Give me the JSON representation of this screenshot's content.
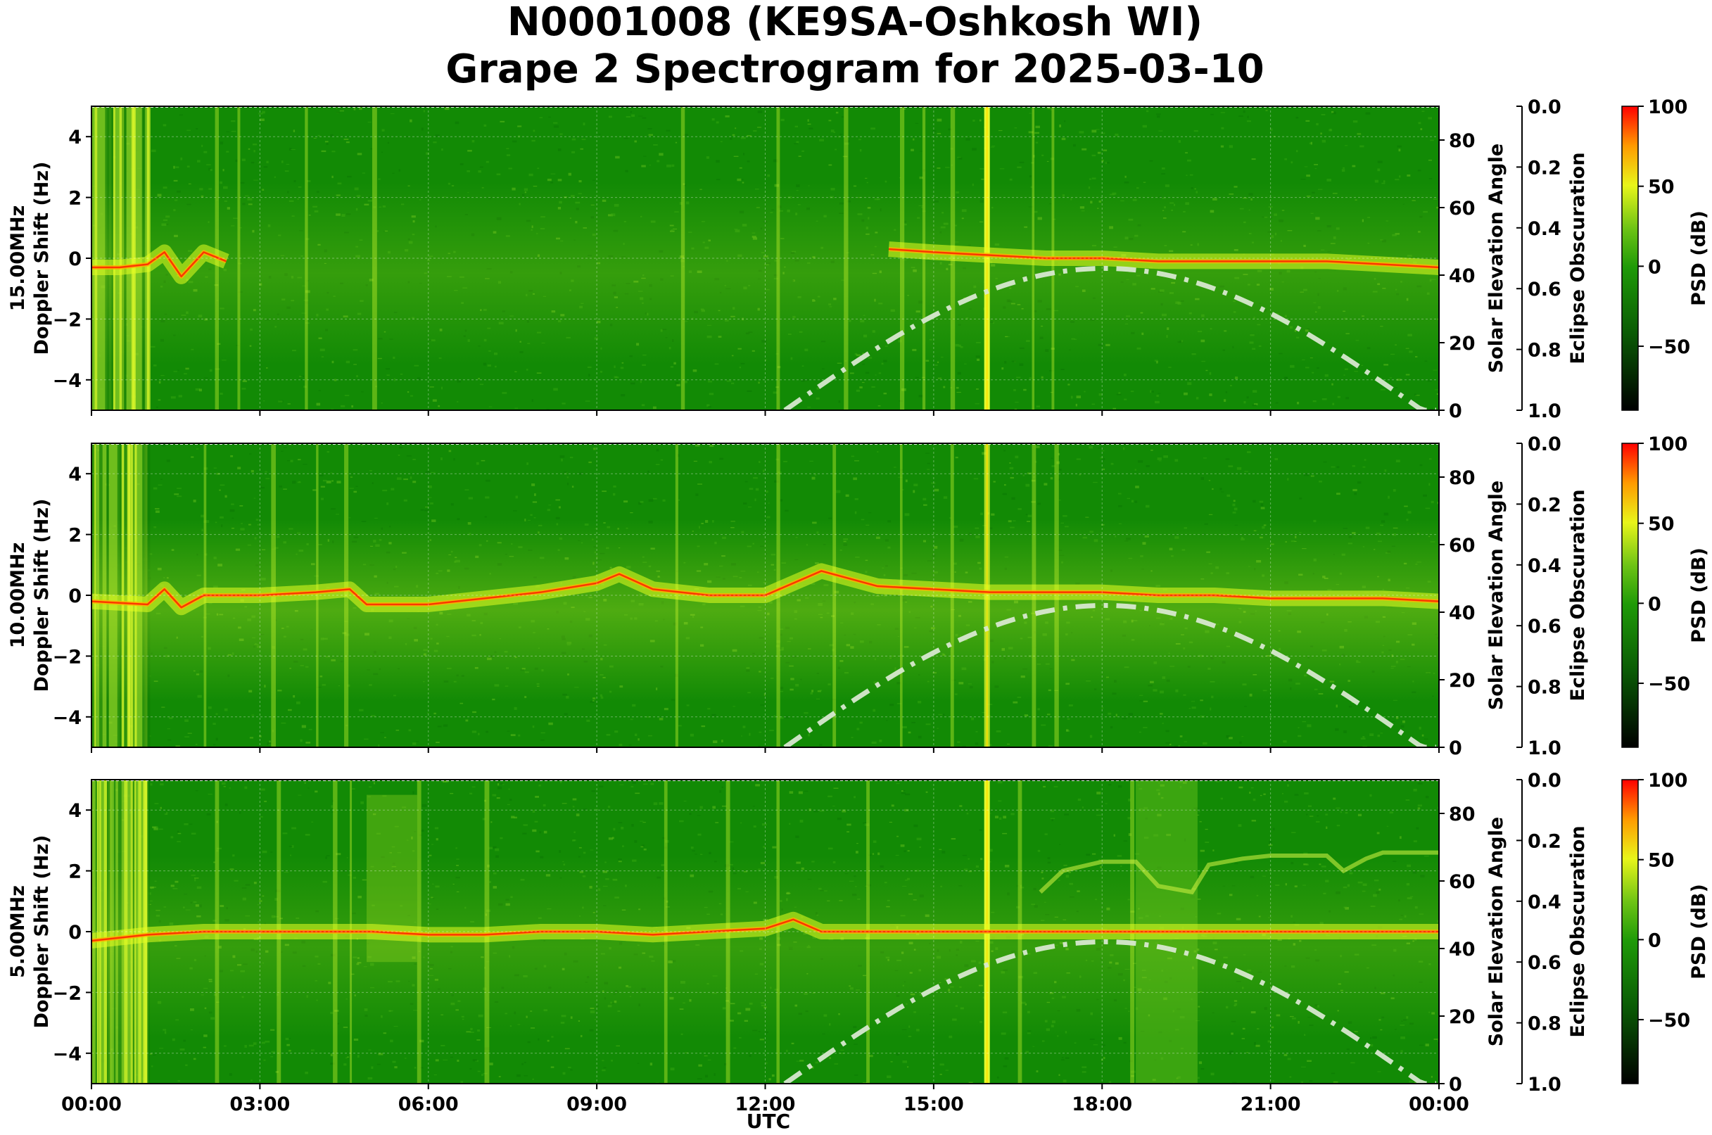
{
  "figure": {
    "title_line1": "N0001008 (KE9SA-Oshkosh WI)",
    "title_line2": "Grape 2 Spectrogram for 2025-03-10",
    "xlabel": "UTC",
    "x_ticks": [
      "00:00",
      "03:00",
      "06:00",
      "09:00",
      "12:00",
      "15:00",
      "18:00",
      "21:00",
      "00:00"
    ]
  },
  "colors": {
    "background_green": "#128a05",
    "trace_red": "#ff2000",
    "trace_yellow": "#e6ff20",
    "solar_curve": "#d8e8d0"
  },
  "chart_data": [
    {
      "type": "heatmap",
      "frequency_label": "15.00MHz",
      "ylabel": "15.00MHz\nDoppler Shift (Hz)",
      "ylabel_line1": "15.00MHz",
      "ylabel_line2": "Doppler Shift (Hz)",
      "ylim": [
        -5,
        5
      ],
      "y_ticks": [
        "4",
        "2",
        "0",
        "−2",
        "−4"
      ],
      "y_tick_values": [
        4,
        2,
        0,
        -2,
        -4
      ],
      "xlim_hours": [
        0,
        24
      ],
      "doppler_trace": {
        "hours": [
          0,
          0.5,
          1.0,
          1.3,
          1.6,
          2.0,
          2.4
        ],
        "hz": [
          -0.3,
          -0.3,
          -0.2,
          0.2,
          -0.6,
          0.2,
          -0.1
        ]
      },
      "doppler_trace_late": {
        "hours": [
          14.2,
          15,
          16,
          17,
          18,
          19,
          20,
          21,
          22,
          23,
          24
        ],
        "hz": [
          0.3,
          0.2,
          0.1,
          0.0,
          0.0,
          -0.1,
          -0.1,
          -0.1,
          -0.1,
          -0.2,
          -0.3
        ]
      },
      "solar_elevation": {
        "label": "Solar Elevation Angle",
        "ylim": [
          0,
          90
        ],
        "ticks": [
          "0",
          "20",
          "40",
          "60",
          "80"
        ],
        "tick_values": [
          0,
          20,
          40,
          60,
          80
        ],
        "sunrise_hour": 12.35,
        "sunset_hour": 23.7,
        "noon_hour": 18.05,
        "max_deg": 42
      },
      "eclipse": {
        "label": "Eclipse Obscuration",
        "ylim": [
          1.0,
          0.0
        ],
        "ticks": [
          "0.0",
          "0.2",
          "0.4",
          "0.6",
          "0.8",
          "1.0"
        ],
        "tick_values": [
          0.0,
          0.2,
          0.4,
          0.6,
          0.8,
          1.0
        ]
      },
      "colorbar": {
        "label": "PSD (dB)",
        "range": [
          -90,
          100
        ],
        "ticks": [
          "100",
          "50",
          "0",
          "−50"
        ],
        "tick_values": [
          100,
          50,
          0,
          -50
        ]
      }
    },
    {
      "type": "heatmap",
      "frequency_label": "10.00MHz",
      "ylabel": "10.00MHz\nDoppler Shift (Hz)",
      "ylabel_line1": "10.00MHz",
      "ylabel_line2": "Doppler Shift (Hz)",
      "ylim": [
        -5,
        5
      ],
      "y_ticks": [
        "4",
        "2",
        "0",
        "−2",
        "−4"
      ],
      "y_tick_values": [
        4,
        2,
        0,
        -2,
        -4
      ],
      "xlim_hours": [
        0,
        24
      ],
      "doppler_trace": {
        "hours": [
          0,
          1,
          1.3,
          1.6,
          2,
          3,
          4,
          4.6,
          4.9,
          5.2,
          6,
          7,
          8,
          9,
          9.4,
          10,
          11,
          12,
          13,
          14,
          15,
          16,
          17,
          18,
          19,
          20,
          21,
          22,
          23,
          24
        ],
        "hz": [
          -0.2,
          -0.3,
          0.2,
          -0.4,
          0.0,
          0.0,
          0.1,
          0.2,
          -0.3,
          -0.3,
          -0.3,
          -0.1,
          0.1,
          0.4,
          0.7,
          0.2,
          0.0,
          0.0,
          0.8,
          0.3,
          0.2,
          0.1,
          0.1,
          0.1,
          0.0,
          0.0,
          -0.1,
          -0.1,
          -0.1,
          -0.2
        ]
      },
      "solar_elevation": {
        "label": "Solar Elevation Angle",
        "ylim": [
          0,
          90
        ],
        "ticks": [
          "0",
          "20",
          "40",
          "60",
          "80"
        ],
        "tick_values": [
          0,
          20,
          40,
          60,
          80
        ],
        "sunrise_hour": 12.35,
        "sunset_hour": 23.7,
        "noon_hour": 18.05,
        "max_deg": 42
      },
      "eclipse": {
        "label": "Eclipse Obscuration",
        "ylim": [
          1.0,
          0.0
        ],
        "ticks": [
          "0.0",
          "0.2",
          "0.4",
          "0.6",
          "0.8",
          "1.0"
        ],
        "tick_values": [
          0.0,
          0.2,
          0.4,
          0.6,
          0.8,
          1.0
        ]
      },
      "colorbar": {
        "label": "PSD (dB)",
        "range": [
          -90,
          100
        ],
        "ticks": [
          "100",
          "50",
          "0",
          "−50"
        ],
        "tick_values": [
          100,
          50,
          0,
          -50
        ]
      }
    },
    {
      "type": "heatmap",
      "frequency_label": "5.00MHz",
      "ylabel": "5.00MHz\nDoppler Shift (Hz)",
      "ylabel_line1": "5.00MHz",
      "ylabel_line2": "Doppler Shift (Hz)",
      "ylim": [
        -5,
        5
      ],
      "y_ticks": [
        "4",
        "2",
        "0",
        "−2",
        "−4"
      ],
      "y_tick_values": [
        4,
        2,
        0,
        -2,
        -4
      ],
      "xlim_hours": [
        0,
        24
      ],
      "doppler_trace": {
        "hours": [
          0,
          1,
          2,
          3,
          4,
          5,
          6,
          7,
          8,
          9,
          10,
          11,
          12,
          12.5,
          13,
          14,
          15,
          16,
          17,
          18,
          19,
          20,
          21,
          22,
          23,
          24
        ],
        "hz": [
          -0.3,
          -0.1,
          0.0,
          0.0,
          0.0,
          0.0,
          -0.1,
          -0.1,
          0.0,
          0.0,
          -0.1,
          0.0,
          0.1,
          0.4,
          0.0,
          0.0,
          0.0,
          0.0,
          0.0,
          0.0,
          0.0,
          0.0,
          0.0,
          0.0,
          0.0,
          0.0
        ]
      },
      "secondary_trace": {
        "hours": [
          16.9,
          17.3,
          18,
          18.6,
          19.0,
          19.6,
          19.9,
          20.5,
          21,
          22,
          22.3,
          22.7,
          23,
          24
        ],
        "hz": [
          1.3,
          2.0,
          2.3,
          2.3,
          1.5,
          1.3,
          2.2,
          2.4,
          2.5,
          2.5,
          2.0,
          2.4,
          2.6,
          2.6
        ]
      },
      "solar_elevation": {
        "label": "Solar Elevation Angle",
        "ylim": [
          0,
          90
        ],
        "ticks": [
          "0",
          "20",
          "40",
          "60",
          "80"
        ],
        "tick_values": [
          0,
          20,
          40,
          60,
          80
        ],
        "sunrise_hour": 12.35,
        "sunset_hour": 23.7,
        "noon_hour": 18.05,
        "max_deg": 42
      },
      "eclipse": {
        "label": "Eclipse Obscuration",
        "ylim": [
          1.0,
          0.0
        ],
        "ticks": [
          "0.0",
          "0.2",
          "0.4",
          "0.6",
          "0.8",
          "1.0"
        ],
        "tick_values": [
          0.0,
          0.2,
          0.4,
          0.6,
          0.8,
          1.0
        ]
      },
      "colorbar": {
        "label": "PSD (dB)",
        "range": [
          -90,
          100
        ],
        "ticks": [
          "100",
          "50",
          "0",
          "−50"
        ],
        "tick_values": [
          100,
          50,
          0,
          -50
        ]
      }
    }
  ]
}
